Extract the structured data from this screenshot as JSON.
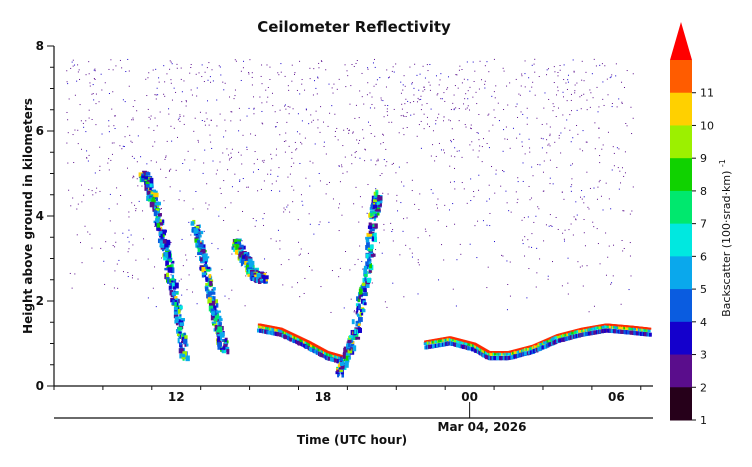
{
  "chart_data": {
    "type": "heatmap",
    "title": "Ceilometer Reflectivity",
    "xlabel": "Time (UTC hour)",
    "ylabel": "Height above ground in kilometers",
    "date_label": "Mar 04, 2026",
    "y_ticks": [
      "0",
      "2",
      "4",
      "6",
      "8"
    ],
    "x_ticks": [
      "12",
      "18",
      "00",
      "06"
    ],
    "ylim": [
      0,
      8
    ],
    "x_range_hours": [
      7,
      31.5
    ],
    "x_tick_hours": [
      12,
      18,
      24,
      30
    ],
    "colorbar": {
      "label": "Backscatter (100·srad·km)",
      "exponent": "-1",
      "ticks": [
        "1",
        "2",
        "3",
        "4",
        "5",
        "6",
        "7",
        "8",
        "9",
        "10",
        "11"
      ],
      "colors": [
        "#26001a",
        "#5a0d8c",
        "#1400cc",
        "#0a5ce0",
        "#0aa8ec",
        "#00e8e0",
        "#00e86e",
        "#10d200",
        "#9cf000",
        "#ffd000",
        "#ff5c00"
      ],
      "overflow_color": "#ff0000"
    },
    "features": [
      {
        "name": "cloud-layer-a",
        "points": [
          [
            10.7,
            5.0
          ],
          [
            11.1,
            4.3
          ],
          [
            11.6,
            3.2
          ],
          [
            12.0,
            1.9
          ],
          [
            12.4,
            0.6
          ]
        ]
      },
      {
        "name": "cloud-layer-b",
        "points": [
          [
            12.8,
            3.8
          ],
          [
            13.2,
            2.8
          ],
          [
            13.6,
            1.7
          ],
          [
            14.0,
            0.8
          ]
        ]
      },
      {
        "name": "cloud-layer-c",
        "points": [
          [
            14.4,
            3.4
          ],
          [
            14.8,
            3.0
          ],
          [
            15.2,
            2.6
          ],
          [
            15.6,
            2.5
          ]
        ]
      },
      {
        "name": "cloud-base-a",
        "points": [
          [
            15.4,
            1.4
          ],
          [
            16.3,
            1.3
          ],
          [
            17.4,
            1.0
          ],
          [
            18.2,
            0.75
          ],
          [
            18.8,
            0.65
          ]
        ]
      },
      {
        "name": "cloud-tower",
        "points": [
          [
            18.7,
            0.3
          ],
          [
            19.3,
            1.2
          ],
          [
            19.8,
            2.6
          ],
          [
            20.1,
            4.1
          ],
          [
            20.3,
            4.5
          ]
        ]
      },
      {
        "name": "cloud-base-b",
        "points": [
          [
            22.2,
            1.0
          ],
          [
            23.2,
            1.1
          ],
          [
            24.2,
            0.95
          ],
          [
            24.8,
            0.75
          ],
          [
            25.6,
            0.75
          ],
          [
            26.6,
            0.9
          ],
          [
            27.6,
            1.15
          ],
          [
            28.6,
            1.3
          ],
          [
            29.6,
            1.4
          ],
          [
            30.6,
            1.35
          ],
          [
            31.4,
            1.3
          ]
        ]
      }
    ]
  }
}
